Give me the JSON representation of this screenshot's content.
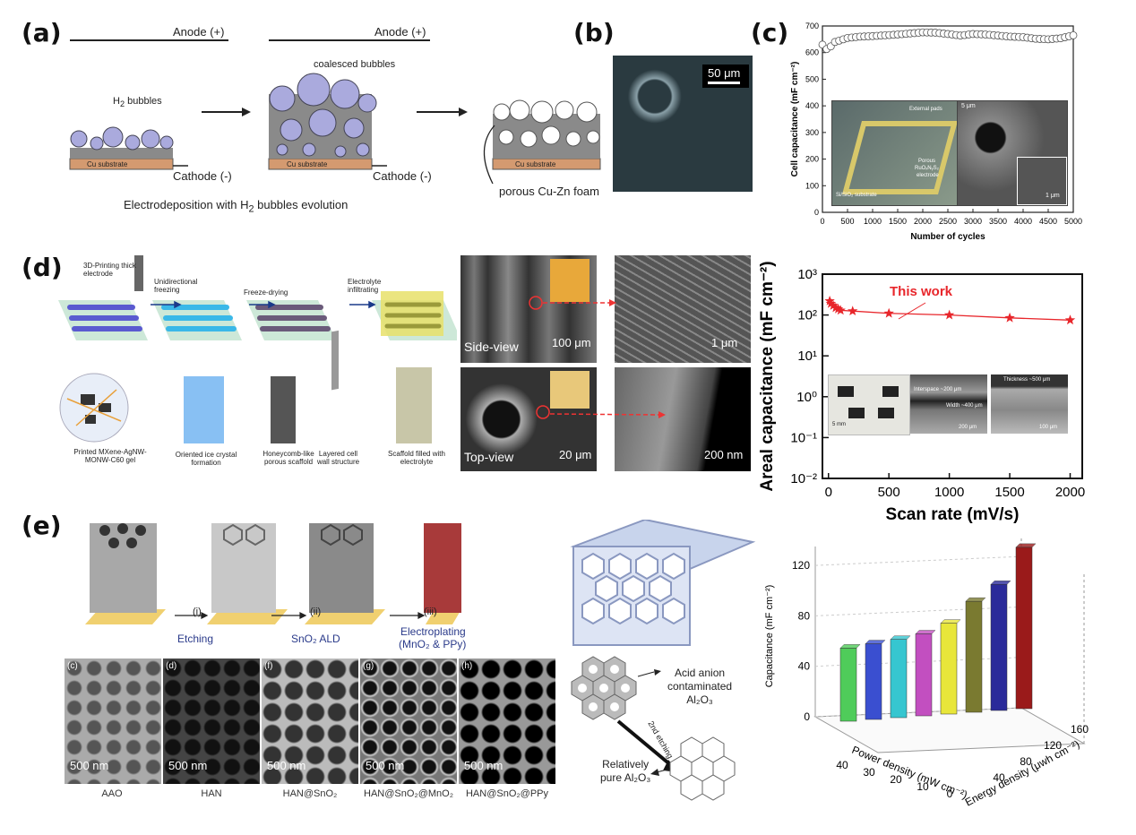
{
  "panels": {
    "a": {
      "label": "(a)",
      "anode_1": "Anode (+)",
      "anode_2": "Anode (+)",
      "cathode_1": "Cathode (-)",
      "cathode_2": "Cathode (-)",
      "h2_bubbles": "H",
      "h2_bubbles_sub": "2",
      "h2_bubbles_rest": " bubbles",
      "coalesced": "coalesced bubbles",
      "substrate_1": "Cu substrate",
      "substrate_2": "Cu substrate",
      "substrate_3": "Cu substrate",
      "foam": "porous Cu-Zn foam",
      "caption_pre": "Electrodeposition with H",
      "caption_sub": "2",
      "caption_post": " bubbles evolution"
    },
    "b": {
      "label": "(b)",
      "scale": "50 μm"
    },
    "c": {
      "label": "(c)",
      "inset_labels": [
        "External pads",
        "Porous",
        "RuOₓNᵧS₂",
        "electrode",
        "Si/SiO₂ substrate",
        "5 μm",
        "1 μm"
      ]
    },
    "d": {
      "label": "(d)",
      "steps": [
        "3D-Printing thick electrode",
        "Unidirectional freezing",
        "Freeze-drying",
        "Electrolyte infiltrating"
      ],
      "bottom_caps": [
        "Printed MXene-AgNW-MONW-C60 gel",
        "Oriented ice crystal formation",
        "Honeycomb-like porous scaffold",
        "Layered cell wall structure",
        "Scaffold filled with electrolyte"
      ],
      "sem": {
        "side_view": "Side-view",
        "top_view": "Top-view",
        "s1": "100 μm",
        "s2": "1 μm",
        "s3": "20 μm",
        "s4": "200 nm"
      },
      "inset_scales": [
        "5 mm",
        "Interspace ~200 μm",
        "Width ~400 μm",
        "Thickness ~500 μm",
        "200 μm",
        "100 μm"
      ]
    },
    "e": {
      "label": "(e)",
      "steps": [
        "(i)",
        "Etching",
        "(ii)",
        "SnO₂ ALD",
        "(iii)",
        "Electroplating",
        "(MnO₂ & PPy)"
      ],
      "sem_letters": [
        "(c)",
        "(d)",
        "(f)",
        "(g)",
        "(h)"
      ],
      "sem_scale": "500 nm",
      "sem_caps": [
        "AAO",
        "HAN",
        "HAN@SnO₂",
        "HAN@SnO₂@MnO₂",
        "HAN@SnO₂@PPy"
      ],
      "acid": [
        "Acid anion",
        "contaminated",
        "Al₂O₃"
      ],
      "etching2": "2nd etching",
      "pure": [
        "Relatively",
        "pure Al₂O₃"
      ]
    }
  },
  "chart_data": [
    {
      "type": "scatter",
      "panel": "c",
      "xlabel": "Number of cycles",
      "ylabel": "Cell capacitance (mF cm⁻²)",
      "xlim": [
        0,
        5000
      ],
      "ylim": [
        0,
        700
      ],
      "xticks": [
        0,
        500,
        1000,
        1500,
        2000,
        2500,
        3000,
        3500,
        4000,
        4500,
        5000
      ],
      "yticks": [
        0,
        100,
        200,
        300,
        400,
        500,
        600,
        700
      ],
      "x": [
        0,
        100,
        250,
        500,
        750,
        1000,
        1250,
        1500,
        1750,
        2000,
        2250,
        2500,
        2750,
        3000,
        3250,
        3500,
        3750,
        4000,
        4250,
        4500,
        4750,
        5000
      ],
      "y": [
        630,
        610,
        640,
        655,
        660,
        662,
        665,
        668,
        672,
        676,
        675,
        670,
        664,
        670,
        668,
        664,
        660,
        658,
        652,
        650,
        654,
        665
      ]
    },
    {
      "type": "line",
      "panel": "d",
      "xlabel": "Scan rate (mV/s)",
      "ylabel": "Areal capacitance (mF cm⁻²)",
      "yscale": "log",
      "xlim": [
        -50,
        2100
      ],
      "ylim": [
        0.01,
        1000
      ],
      "xticks": [
        0,
        500,
        1000,
        1500,
        2000
      ],
      "ytick_labels": [
        "10⁻²",
        "10⁻¹",
        "10⁰",
        "10¹",
        "10²",
        "10³"
      ],
      "series": [
        {
          "name": "This work",
          "color": "#e8262b",
          "x": [
            10,
            20,
            40,
            60,
            80,
            100,
            200,
            500,
            1000,
            1500,
            2000
          ],
          "y": [
            220,
            190,
            170,
            150,
            140,
            130,
            125,
            110,
            100,
            85,
            75
          ]
        }
      ]
    },
    {
      "type": "bar",
      "panel": "e",
      "subtype": "3d-bar",
      "zlabel": "Capacitance (mF cm⁻²)",
      "xlabel": "Power density (mW cm⁻²)",
      "ylabel": "Energy density (μwh cm⁻²)",
      "zticks": [
        0,
        40,
        80,
        120
      ],
      "xticks": [
        40,
        30,
        20,
        10,
        0
      ],
      "yticks": [
        40,
        80,
        120,
        160
      ],
      "values": [
        58,
        60,
        62,
        65,
        72,
        88,
        100,
        128
      ],
      "colors": [
        "#4fcc5a",
        "#3a4fd0",
        "#36c6d0",
        "#c24fc0",
        "#e8e63a",
        "#7a7a30",
        "#2a2a9a",
        "#9a1a1a"
      ]
    }
  ]
}
